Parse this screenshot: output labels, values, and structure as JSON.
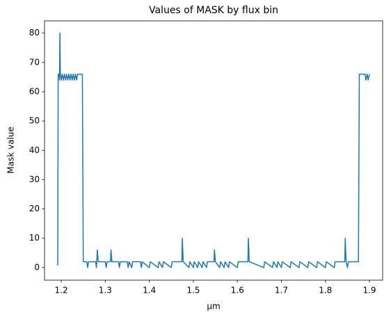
{
  "chart_data": {
    "type": "line",
    "title": "Values of MASK by flux bin",
    "xlabel": "µm",
    "ylabel": "Mask value",
    "series": [
      {
        "color": "#1f77b4",
        "x": [
          1.19,
          1.192,
          1.193,
          1.195,
          1.196,
          1.197,
          1.198,
          1.2,
          1.202,
          1.205,
          1.207,
          1.21,
          1.212,
          1.215,
          1.217,
          1.22,
          1.222,
          1.225,
          1.227,
          1.23,
          1.232,
          1.235,
          1.237,
          1.248,
          1.25,
          1.258,
          1.26,
          1.262,
          1.278,
          1.28,
          1.282,
          1.284,
          1.3,
          1.302,
          1.304,
          1.312,
          1.313,
          1.315,
          1.33,
          1.332,
          1.334,
          1.35,
          1.352,
          1.354,
          1.36,
          1.362,
          1.38,
          1.382,
          1.384,
          1.4,
          1.402,
          1.42,
          1.422,
          1.43,
          1.432,
          1.45,
          1.452,
          1.474,
          1.475,
          1.477,
          1.49,
          1.492,
          1.5,
          1.502,
          1.51,
          1.512,
          1.52,
          1.522,
          1.53,
          1.532,
          1.547,
          1.548,
          1.55,
          1.56,
          1.562,
          1.57,
          1.572,
          1.58,
          1.582,
          1.6,
          1.602,
          1.624,
          1.625,
          1.627,
          1.66,
          1.662,
          1.68,
          1.682,
          1.69,
          1.692,
          1.7,
          1.702,
          1.72,
          1.722,
          1.74,
          1.742,
          1.76,
          1.762,
          1.78,
          1.782,
          1.8,
          1.802,
          1.82,
          1.822,
          1.844,
          1.845,
          1.847,
          1.85,
          1.852,
          1.875,
          1.877,
          1.89,
          1.892,
          1.895,
          1.897,
          1.9
        ],
        "values": [
          1,
          1,
          66,
          66,
          64,
          80,
          66,
          64,
          66,
          64,
          66,
          64,
          66,
          64,
          66,
          64,
          66,
          64,
          66,
          64,
          66,
          64,
          66,
          66,
          2,
          2,
          0,
          2,
          2,
          0,
          6,
          2,
          2,
          0,
          2,
          2,
          6,
          2,
          2,
          0,
          2,
          2,
          0,
          2,
          0,
          2,
          2,
          0,
          2,
          0,
          2,
          0,
          2,
          0,
          2,
          0,
          2,
          2,
          10,
          2,
          0,
          2,
          0,
          2,
          0,
          2,
          0,
          2,
          0,
          2,
          2,
          6,
          2,
          0,
          2,
          0,
          2,
          0,
          2,
          0,
          2,
          2,
          10,
          2,
          0,
          2,
          0,
          2,
          0,
          2,
          0,
          2,
          0,
          2,
          0,
          2,
          0,
          2,
          0,
          2,
          0,
          2,
          0,
          2,
          2,
          10,
          2,
          0,
          2,
          2,
          66,
          66,
          64,
          66,
          64,
          66
        ]
      }
    ],
    "xlim": [
      1.162,
      1.93
    ],
    "xticks": [
      1.2,
      1.3,
      1.4,
      1.5,
      1.6,
      1.7,
      1.8,
      1.9
    ],
    "ylim": [
      -4.3,
      84.2
    ],
    "yticks": [
      0,
      10,
      20,
      30,
      40,
      50,
      60,
      70,
      80
    ]
  }
}
